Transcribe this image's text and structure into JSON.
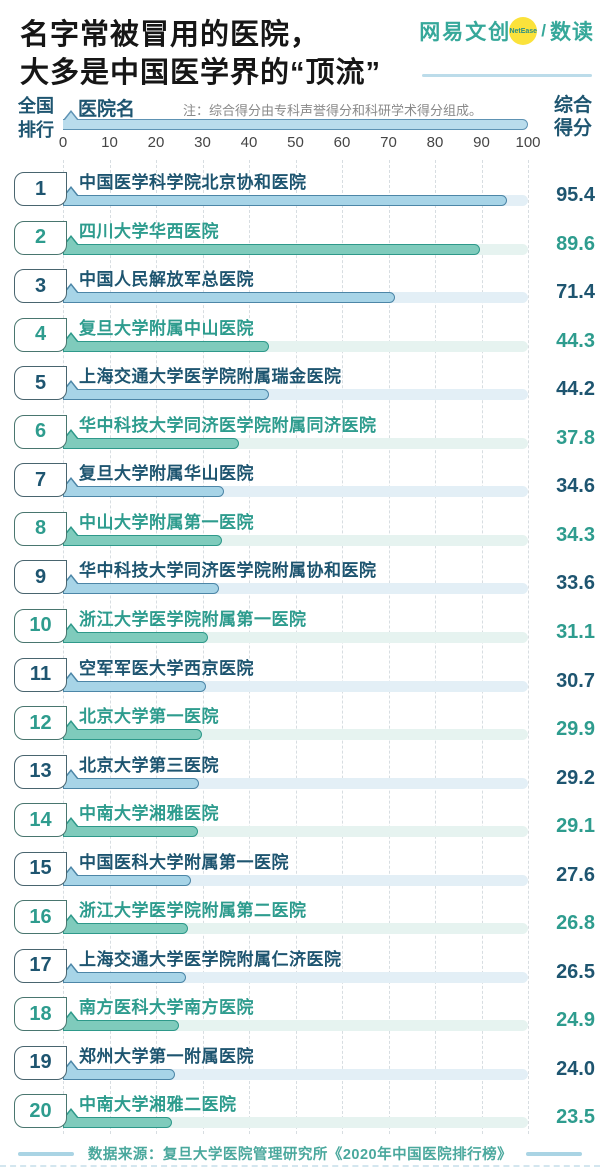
{
  "header": {
    "title_line1": "名字常被冒用的医院，",
    "title_line2": "大多是中国医学界的“顶流”",
    "logo": {
      "brand": "网易文创",
      "badge": "NetEase",
      "separator": "/",
      "product": "数读"
    }
  },
  "table": {
    "col_rank_line1": "全国",
    "col_rank_line2": "排行",
    "col_name": "医院名",
    "note": "注：综合得分由专科声誉得分和科研学术得分组成。",
    "col_score_line1": "综合",
    "col_score_line2": "得分"
  },
  "chart_data": {
    "type": "bar",
    "orientation": "horizontal",
    "title": "名字常被冒用的医院，大多是中国医学界的“顶流”",
    "xlabel": "综合得分",
    "xlim": [
      0,
      100
    ],
    "x_ticks": [
      0,
      10,
      20,
      30,
      40,
      50,
      60,
      70,
      80,
      90,
      100
    ],
    "grid": "dashed-vertical",
    "legend": "none",
    "note": "注：综合得分由专科声誉得分和科研学术得分组成。",
    "rows": [
      {
        "rank": 1,
        "name": "中国医学科学院北京协和医院",
        "score": 95.4,
        "variant": "blue"
      },
      {
        "rank": 2,
        "name": "四川大学华西医院",
        "score": 89.6,
        "variant": "teal"
      },
      {
        "rank": 3,
        "name": "中国人民解放军总医院",
        "score": 71.4,
        "variant": "blue"
      },
      {
        "rank": 4,
        "name": "复旦大学附属中山医院",
        "score": 44.3,
        "variant": "teal"
      },
      {
        "rank": 5,
        "name": "上海交通大学医学院附属瑞金医院",
        "score": 44.2,
        "variant": "blue"
      },
      {
        "rank": 6,
        "name": "华中科技大学同济医学院附属同济医院",
        "score": 37.8,
        "variant": "teal"
      },
      {
        "rank": 7,
        "name": "复旦大学附属华山医院",
        "score": 34.6,
        "variant": "blue"
      },
      {
        "rank": 8,
        "name": "中山大学附属第一医院",
        "score": 34.3,
        "variant": "teal"
      },
      {
        "rank": 9,
        "name": "华中科技大学同济医学院附属协和医院",
        "score": 33.6,
        "variant": "blue"
      },
      {
        "rank": 10,
        "name": "浙江大学医学院附属第一医院",
        "score": 31.1,
        "variant": "teal"
      },
      {
        "rank": 11,
        "name": "空军军医大学西京医院",
        "score": 30.7,
        "variant": "blue"
      },
      {
        "rank": 12,
        "name": "北京大学第一医院",
        "score": 29.9,
        "variant": "teal"
      },
      {
        "rank": 13,
        "name": "北京大学第三医院",
        "score": 29.2,
        "variant": "blue"
      },
      {
        "rank": 14,
        "name": "中南大学湘雅医院",
        "score": 29.1,
        "variant": "teal"
      },
      {
        "rank": 15,
        "name": "中国医科大学附属第一医院",
        "score": 27.6,
        "variant": "blue"
      },
      {
        "rank": 16,
        "name": "浙江大学医学院附属第二医院",
        "score": 26.8,
        "variant": "teal"
      },
      {
        "rank": 17,
        "name": "上海交通大学医学院附属仁济医院",
        "score": 26.5,
        "variant": "blue"
      },
      {
        "rank": 18,
        "name": "南方医科大学南方医院",
        "score": 24.9,
        "variant": "teal"
      },
      {
        "rank": 19,
        "name": "郑州大学第一附属医院",
        "score": 24.0,
        "variant": "blue"
      },
      {
        "rank": 20,
        "name": "中南大学湘雅二医院",
        "score": 23.5,
        "variant": "teal"
      }
    ]
  },
  "footer": {
    "source": "数据来源：复旦大学医院管理研究所《2020年中国医院排行榜》"
  },
  "colors": {
    "blue_text": "#1e5570",
    "teal_text": "#2e9c8e",
    "blue_bar_fill": "#a7d4e7",
    "blue_bar_border": "#4c86a7",
    "teal_bar_fill": "#7fcbbc",
    "teal_bar_border": "#2e998a",
    "track_blue": "#e3eff6",
    "track_teal": "#e6f3f0",
    "gridline": "#d7dde1",
    "accent_yellow": "#fbe23b",
    "brand_teal": "#36a89a"
  }
}
